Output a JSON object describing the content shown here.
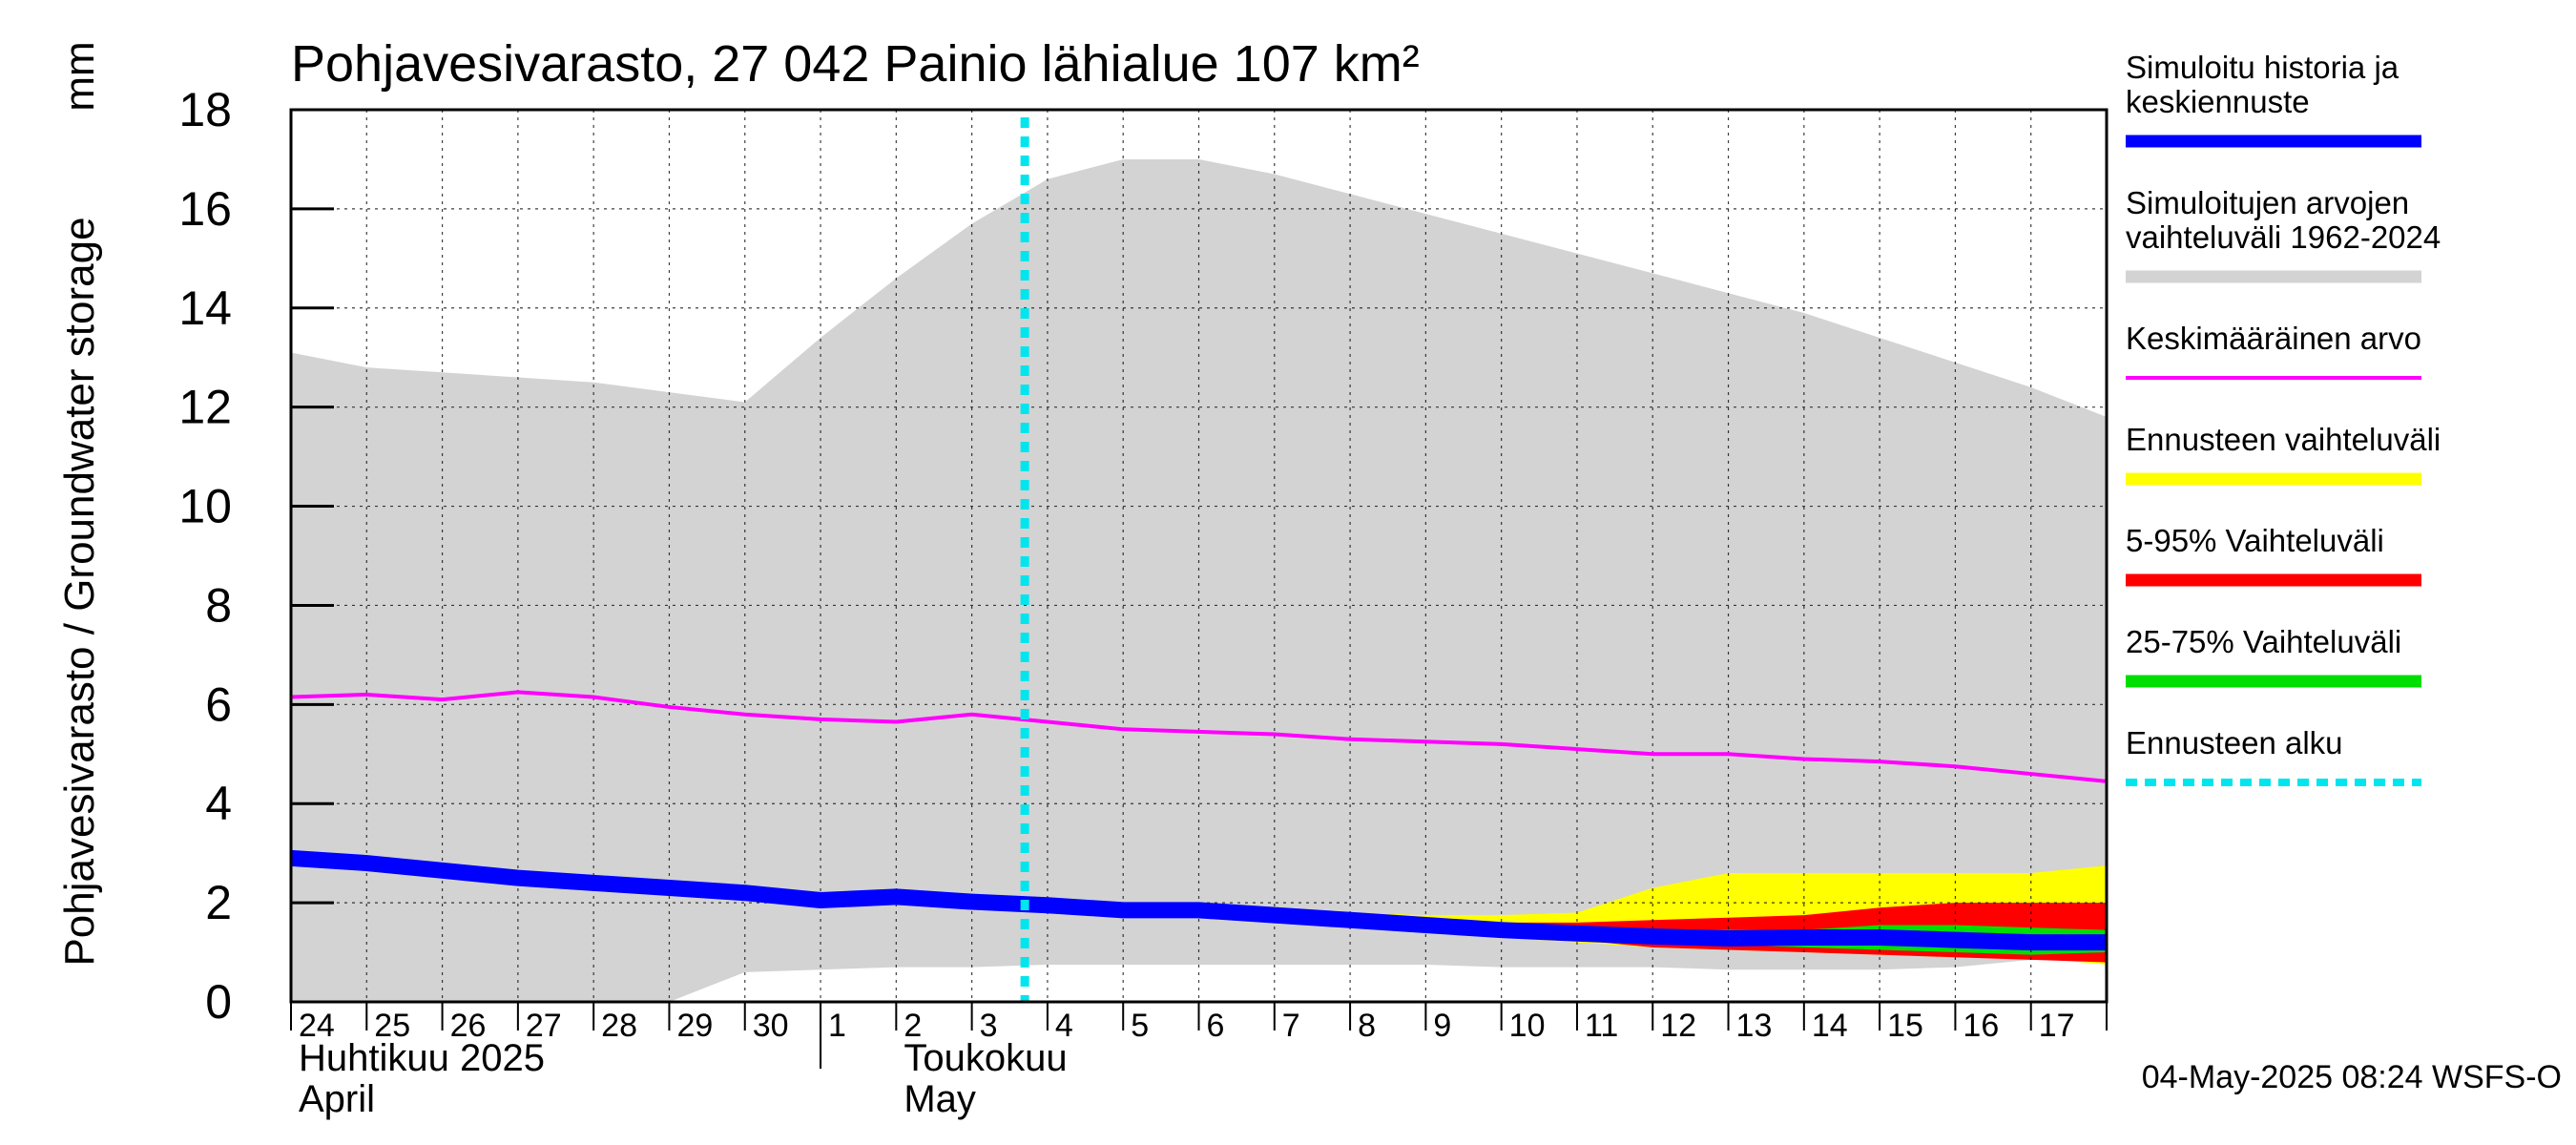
{
  "chart_data": {
    "type": "area",
    "title": "Pohjavesivarasto, 27 042 Painio lähialue 107 km²",
    "ylabel": "Pohjavesivarasto / Groundwater storage",
    "yunit": "mm",
    "ylim": [
      0,
      18
    ],
    "yticks": [
      0,
      2,
      4,
      6,
      8,
      10,
      12,
      14,
      16,
      18
    ],
    "x_start": "2025-04-24",
    "x_end": "2025-05-17",
    "day_labels": [
      "24",
      "25",
      "26",
      "27",
      "28",
      "29",
      "30",
      "1",
      "2",
      "3",
      "4",
      "5",
      "6",
      "7",
      "8",
      "9",
      "10",
      "11",
      "12",
      "13",
      "14",
      "15",
      "16",
      "17"
    ],
    "months": [
      {
        "fi": "Huhtikuu  2025",
        "en": "April"
      },
      {
        "fi": "Toukokuu",
        "en": "May"
      }
    ],
    "forecast_start": "2025-05-04",
    "grid": true,
    "timestamp": "04-May-2025 08:24 WSFS-O",
    "legend": [
      {
        "label": "Simuloitu historia ja\nkeskiennuste",
        "color": "#0000ff",
        "style": "thick"
      },
      {
        "label": "Simuloitujen arvojen\nvaihteluväli 1962-2024",
        "color": "#d3d3d3",
        "style": "thick"
      },
      {
        "label": "Keskimääräinen arvo",
        "color": "#ff00ff",
        "style": "thin"
      },
      {
        "label": "Ennusteen vaihteluväli",
        "color": "#ffff00",
        "style": "thick"
      },
      {
        "label": "5-95% Vaihteluväli",
        "color": "#ff0000",
        "style": "thick"
      },
      {
        "label": "25-75% Vaihteluväli",
        "color": "#00dd00",
        "style": "thick"
      },
      {
        "label": "Ennusteen alku",
        "color": "#00e5ee",
        "style": "dashed"
      }
    ],
    "x": [
      "04-24",
      "04-25",
      "04-26",
      "04-27",
      "04-28",
      "04-29",
      "04-30",
      "05-01",
      "05-02",
      "05-03",
      "05-04",
      "05-05",
      "05-06",
      "05-07",
      "05-08",
      "05-09",
      "05-10",
      "05-11",
      "05-12",
      "05-13",
      "05-14",
      "05-15",
      "05-16",
      "05-17",
      "05-18"
    ],
    "series": [
      {
        "name": "Simuloitujen arvojen vaihteluväli 1962-2024",
        "kind": "band",
        "color": "#d3d3d3",
        "lower": [
          0.0,
          0.0,
          0.0,
          0.0,
          0.0,
          0.0,
          0.6,
          0.65,
          0.7,
          0.7,
          0.75,
          0.75,
          0.75,
          0.75,
          0.75,
          0.75,
          0.7,
          0.7,
          0.7,
          0.65,
          0.65,
          0.65,
          0.7,
          0.85,
          0.95
        ],
        "upper": [
          13.1,
          12.8,
          12.7,
          12.6,
          12.5,
          12.3,
          12.1,
          13.4,
          14.6,
          15.7,
          16.6,
          17.0,
          17.0,
          16.7,
          16.3,
          15.9,
          15.5,
          15.1,
          14.7,
          14.3,
          13.9,
          13.4,
          12.9,
          12.4,
          11.8
        ]
      },
      {
        "name": "Ennusteen vaihteluväli",
        "kind": "band",
        "color": "#ffff00",
        "lower": [
          null,
          null,
          null,
          null,
          null,
          null,
          null,
          null,
          null,
          null,
          1.95,
          1.85,
          1.85,
          1.7,
          1.55,
          1.4,
          1.3,
          1.2,
          1.1,
          1.05,
          1.0,
          0.95,
          0.9,
          0.9,
          0.75
        ],
        "upper": [
          null,
          null,
          null,
          null,
          null,
          null,
          null,
          null,
          null,
          null,
          1.95,
          1.85,
          1.9,
          1.8,
          1.8,
          1.75,
          1.75,
          1.8,
          2.3,
          2.6,
          2.6,
          2.6,
          2.6,
          2.6,
          2.75
        ]
      },
      {
        "name": "5-95% Vaihteluväli",
        "kind": "band",
        "color": "#ff0000",
        "lower": [
          null,
          null,
          null,
          null,
          null,
          null,
          null,
          null,
          null,
          null,
          1.95,
          1.85,
          1.85,
          1.7,
          1.55,
          1.45,
          1.35,
          1.25,
          1.1,
          1.05,
          1.0,
          0.95,
          0.9,
          0.85,
          0.8
        ],
        "upper": [
          null,
          null,
          null,
          null,
          null,
          null,
          null,
          null,
          null,
          null,
          1.95,
          1.85,
          1.9,
          1.75,
          1.75,
          1.7,
          1.6,
          1.6,
          1.65,
          1.7,
          1.75,
          1.9,
          2.0,
          2.0,
          2.0
        ]
      },
      {
        "name": "25-75% Vaihteluväli",
        "kind": "band",
        "color": "#00dd00",
        "lower": [
          null,
          null,
          null,
          null,
          null,
          null,
          null,
          null,
          null,
          null,
          1.95,
          1.85,
          1.85,
          1.72,
          1.6,
          1.48,
          1.4,
          1.3,
          1.2,
          1.15,
          1.1,
          1.05,
          1.0,
          0.95,
          1.0
        ],
        "upper": [
          null,
          null,
          null,
          null,
          null,
          null,
          null,
          null,
          null,
          null,
          1.95,
          1.85,
          1.88,
          1.75,
          1.65,
          1.55,
          1.5,
          1.45,
          1.45,
          1.45,
          1.45,
          1.55,
          1.55,
          1.5,
          1.45
        ]
      },
      {
        "name": "Keskimääräinen arvo",
        "kind": "line",
        "color": "#ff00ff",
        "values": [
          6.15,
          6.2,
          6.1,
          6.25,
          6.15,
          5.95,
          5.8,
          5.7,
          5.65,
          5.8,
          5.65,
          5.5,
          5.45,
          5.4,
          5.3,
          5.25,
          5.2,
          5.1,
          5.0,
          5.0,
          4.9,
          4.85,
          4.75,
          4.6,
          4.45
        ]
      },
      {
        "name": "Simuloitu historia ja keskiennuste",
        "kind": "line",
        "color": "#0000ff",
        "values": [
          2.9,
          2.8,
          2.65,
          2.5,
          2.4,
          2.3,
          2.2,
          2.05,
          2.12,
          2.02,
          1.95,
          1.85,
          1.85,
          1.75,
          1.65,
          1.55,
          1.45,
          1.38,
          1.32,
          1.28,
          1.3,
          1.3,
          1.25,
          1.2,
          1.2
        ]
      }
    ]
  }
}
